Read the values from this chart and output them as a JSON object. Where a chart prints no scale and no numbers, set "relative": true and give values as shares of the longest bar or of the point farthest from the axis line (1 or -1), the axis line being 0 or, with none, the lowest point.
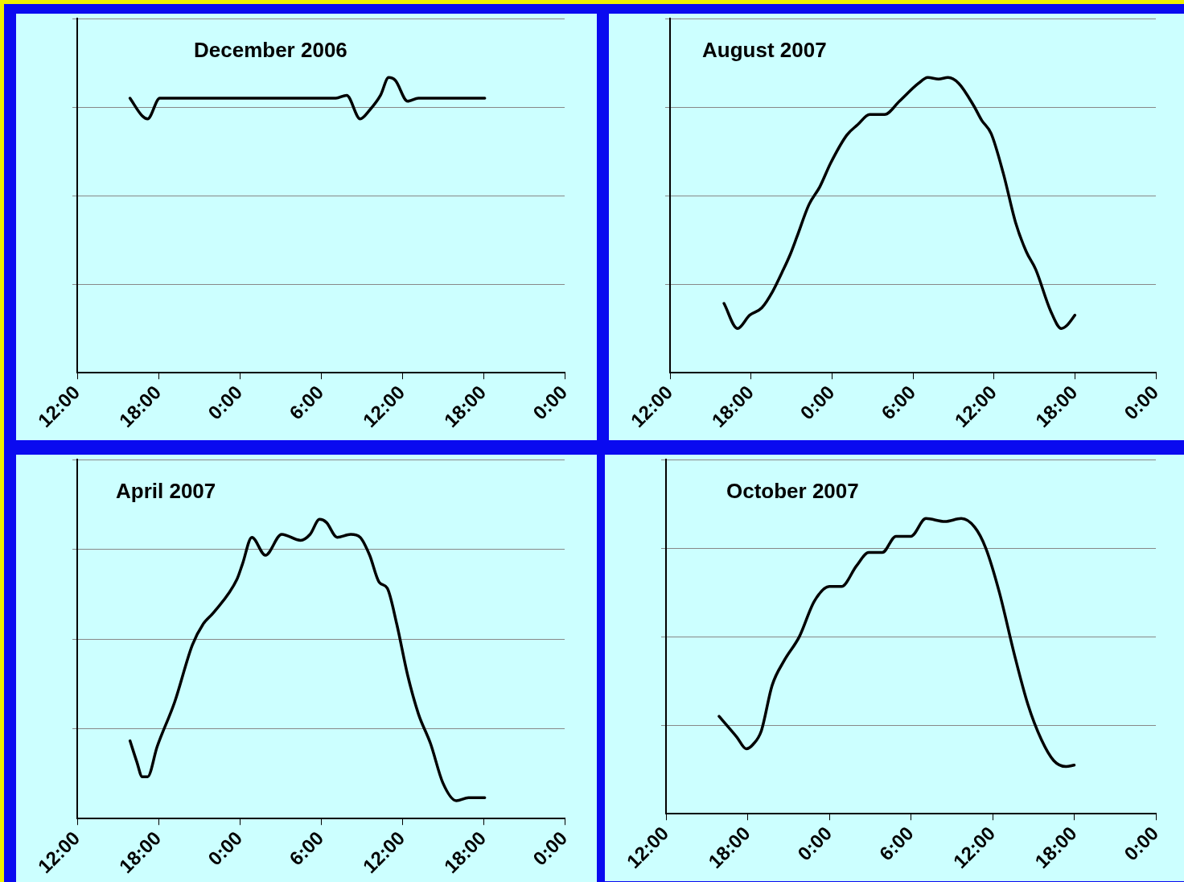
{
  "chart_data": [
    {
      "type": "line",
      "title": "December 2006",
      "relative": true,
      "grid": "y",
      "xlim": [
        "2006-12-01T12:00",
        "2006-12-03T00:00"
      ],
      "xticks": [
        {
          "value": "2006-12-01T12:00",
          "label": "12:00"
        },
        {
          "value": "2006-12-01T18:00",
          "label": "18:00"
        },
        {
          "value": "2006-12-02T00:00",
          "label": "0:00"
        },
        {
          "value": "2006-12-02T06:00",
          "label": "6:00"
        },
        {
          "value": "2006-12-02T12:00",
          "label": "12:00"
        },
        {
          "value": "2006-12-02T18:00",
          "label": "18:00"
        },
        {
          "value": "2006-12-03T00:00",
          "label": "0:00"
        }
      ],
      "marker": "none",
      "line_style": "solid",
      "series": [
        {
          "color": "#000000",
          "x": [
            "2006-12-01T15:54",
            "2006-12-01T16:48",
            "2006-12-01T17:12",
            "2006-12-01T18:06",
            "2006-12-01T22:06",
            "2006-12-02T03:42",
            "2006-12-02T07:06",
            "2006-12-02T07:54",
            "2006-12-02T08:54",
            "2006-12-02T09:36",
            "2006-12-02T10:24",
            "2006-12-02T11:00",
            "2006-12-02T11:30",
            "2006-12-02T12:24",
            "2006-12-02T13:12",
            "2006-12-02T18:06"
          ],
          "values": [
            0.93,
            0.87,
            0.86,
            0.93,
            0.93,
            0.93,
            0.93,
            0.94,
            0.86,
            0.89,
            0.94,
            1.0,
            0.99,
            0.92,
            0.93,
            0.93
          ]
        }
      ]
    },
    {
      "type": "line",
      "title": "August 2007",
      "relative": true,
      "grid": "y",
      "xlim": [
        "2007-08-01T12:00",
        "2007-08-03T00:00"
      ],
      "xticks": [
        {
          "value": "2007-08-01T12:00",
          "label": "12:00"
        },
        {
          "value": "2007-08-01T18:00",
          "label": "18:00"
        },
        {
          "value": "2007-08-02T00:00",
          "label": "0:00"
        },
        {
          "value": "2007-08-02T06:00",
          "label": "6:00"
        },
        {
          "value": "2007-08-02T12:00",
          "label": "12:00"
        },
        {
          "value": "2007-08-02T18:00",
          "label": "18:00"
        },
        {
          "value": "2007-08-03T00:00",
          "label": "0:00"
        }
      ],
      "marker": "none",
      "line_style": "solid",
      "series": [
        {
          "color": "#000000",
          "x": [
            "2007-08-01T16:00",
            "2007-08-01T17:00",
            "2007-08-01T17:54",
            "2007-08-01T18:48",
            "2007-08-01T19:36",
            "2007-08-01T20:18",
            "2007-08-01T20:54",
            "2007-08-01T21:24",
            "2007-08-01T22:18",
            "2007-08-01T23:06",
            "2007-08-01T23:54",
            "2007-08-02T01:06",
            "2007-08-02T01:54",
            "2007-08-02T02:48",
            "2007-08-02T03:54",
            "2007-08-02T05:00",
            "2007-08-02T06:24",
            "2007-08-02T07:06",
            "2007-08-02T07:54",
            "2007-08-02T08:36",
            "2007-08-02T09:24",
            "2007-08-02T10:30",
            "2007-08-02T11:06",
            "2007-08-02T11:48",
            "2007-08-02T12:42",
            "2007-08-02T13:36",
            "2007-08-02T14:24",
            "2007-08-02T15:06",
            "2007-08-02T16:12",
            "2007-08-02T17:00",
            "2007-08-02T17:24",
            "2007-08-02T18:00"
          ],
          "values": [
            0.235,
            0.15,
            0.195,
            0.22,
            0.275,
            0.34,
            0.4,
            0.46,
            0.57,
            0.63,
            0.71,
            0.805,
            0.84,
            0.875,
            0.875,
            0.92,
            0.98,
            1.0,
            0.995,
            1.0,
            0.98,
            0.905,
            0.855,
            0.81,
            0.675,
            0.51,
            0.41,
            0.35,
            0.21,
            0.15,
            0.16,
            0.195
          ]
        }
      ]
    },
    {
      "type": "line",
      "title": "April 2007",
      "relative": true,
      "grid": "y",
      "xlim": [
        "2007-04-01T12:00",
        "2007-04-03T00:00"
      ],
      "xticks": [
        {
          "value": "2007-04-01T12:00",
          "label": "12:00"
        },
        {
          "value": "2007-04-01T18:00",
          "label": "18:00"
        },
        {
          "value": "2007-04-02T00:00",
          "label": "0:00"
        },
        {
          "value": "2007-04-02T06:00",
          "label": "6:00"
        },
        {
          "value": "2007-04-02T12:00",
          "label": "12:00"
        },
        {
          "value": "2007-04-02T18:00",
          "label": "18:00"
        },
        {
          "value": "2007-04-03T00:00",
          "label": "0:00"
        }
      ],
      "marker": "none",
      "line_style": "solid",
      "series": [
        {
          "color": "#000000",
          "x": [
            "2007-04-01T15:54",
            "2007-04-01T16:24",
            "2007-04-01T16:48",
            "2007-04-01T17:12",
            "2007-04-01T17:54",
            "2007-04-01T19:12",
            "2007-04-01T20:30",
            "2007-04-01T21:18",
            "2007-04-01T22:06",
            "2007-04-01T23:48",
            "2007-04-02T00:12",
            "2007-04-02T00:54",
            "2007-04-02T01:54",
            "2007-04-02T03:06",
            "2007-04-02T04:30",
            "2007-04-02T05:12",
            "2007-04-02T05:54",
            "2007-04-02T06:24",
            "2007-04-02T07:12",
            "2007-04-02T08:12",
            "2007-04-02T08:54",
            "2007-04-02T09:36",
            "2007-04-02T10:18",
            "2007-04-02T10:54",
            "2007-04-02T11:36",
            "2007-04-02T12:24",
            "2007-04-02T13:12",
            "2007-04-02T14:06",
            "2007-04-02T15:00",
            "2007-04-02T16:00",
            "2007-04-02T16:54",
            "2007-04-02T18:06"
          ],
          "values": [
            0.26,
            0.19,
            0.14,
            0.14,
            0.24,
            0.39,
            0.58,
            0.65,
            0.69,
            0.8,
            0.85,
            0.94,
            0.88,
            0.95,
            0.93,
            0.95,
            1.0,
            0.99,
            0.94,
            0.95,
            0.94,
            0.88,
            0.79,
            0.77,
            0.65,
            0.48,
            0.35,
            0.25,
            0.12,
            0.06,
            0.07,
            0.07
          ]
        }
      ]
    },
    {
      "type": "line",
      "title": "October 2007",
      "relative": true,
      "grid": "y",
      "xlim": [
        "2007-10-01T12:00",
        "2007-10-03T00:00"
      ],
      "xticks": [
        {
          "value": "2007-10-01T12:00",
          "label": "12:00"
        },
        {
          "value": "2007-10-01T18:00",
          "label": "18:00"
        },
        {
          "value": "2007-10-02T00:00",
          "label": "0:00"
        },
        {
          "value": "2007-10-02T06:00",
          "label": "6:00"
        },
        {
          "value": "2007-10-02T12:00",
          "label": "12:00"
        },
        {
          "value": "2007-10-02T18:00",
          "label": "18:00"
        },
        {
          "value": "2007-10-03T00:00",
          "label": "0:00"
        }
      ],
      "marker": "none",
      "line_style": "solid",
      "series": [
        {
          "color": "#000000",
          "x": [
            "2007-10-01T15:54",
            "2007-10-01T17:12",
            "2007-10-01T17:54",
            "2007-10-01T18:24",
            "2007-10-01T19:00",
            "2007-10-01T19:48",
            "2007-10-01T20:42",
            "2007-10-01T21:48",
            "2007-10-01T22:54",
            "2007-10-02T00:00",
            "2007-10-02T00:54",
            "2007-10-02T02:00",
            "2007-10-02T02:54",
            "2007-10-02T03:54",
            "2007-10-02T04:54",
            "2007-10-02T06:00",
            "2007-10-02T07:06",
            "2007-10-02T08:30",
            "2007-10-02T09:42",
            "2007-10-02T10:42",
            "2007-10-02T11:30",
            "2007-10-02T12:30",
            "2007-10-02T13:36",
            "2007-10-02T14:36",
            "2007-10-02T15:36",
            "2007-10-02T16:30",
            "2007-10-02T17:24",
            "2007-10-02T18:00"
          ],
          "values": [
            0.33,
            0.26,
            0.22,
            0.235,
            0.28,
            0.435,
            0.52,
            0.6,
            0.72,
            0.77,
            0.77,
            0.84,
            0.885,
            0.885,
            0.94,
            0.94,
            1.0,
            0.99,
            1.0,
            0.97,
            0.9,
            0.75,
            0.54,
            0.37,
            0.25,
            0.18,
            0.16,
            0.165
          ]
        }
      ]
    }
  ]
}
